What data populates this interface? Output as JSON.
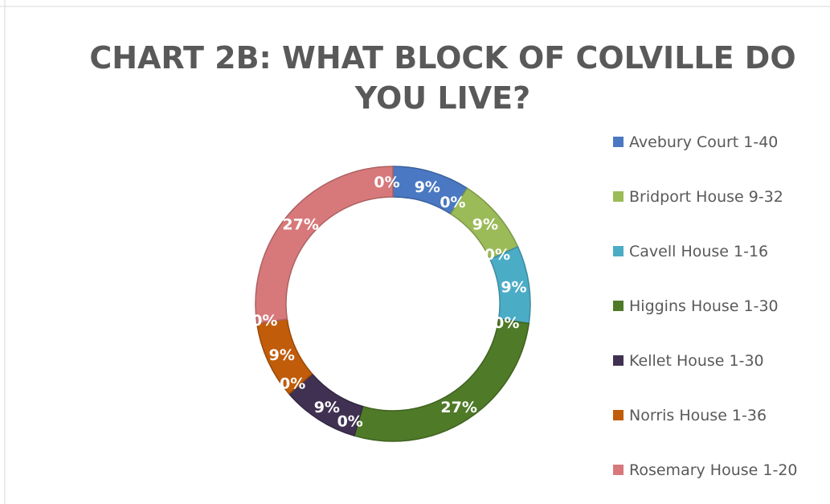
{
  "chart_data": {
    "type": "pie",
    "subtype": "doughnut",
    "title_lines": [
      "CHART 2B: WHAT BLOCK OF COLVILLE DO",
      "YOU LIVE?"
    ],
    "legend_position": "right",
    "categories": [
      "Avebury Court 1-40",
      "Bridport House 9-32",
      "Cavell House 1-16",
      "Higgins House 1-30",
      "Kellet House 1-30",
      "Norris House 1-36",
      "Rosemary House 1-20"
    ],
    "colors": [
      "#4a78c2",
      "#9bbb59",
      "#4bacc6",
      "#4f7a28",
      "#403152",
      "#c05c0a",
      "#d7797b"
    ],
    "values": [
      9,
      9,
      9,
      27,
      9,
      9,
      27
    ],
    "zero_labels": [
      "0%",
      "0%",
      "0%",
      "0%",
      "0%",
      "0%",
      "0%"
    ],
    "value_labels": [
      "9%",
      "9%",
      "9%",
      "27%",
      "9%",
      "9%",
      "27%"
    ]
  }
}
